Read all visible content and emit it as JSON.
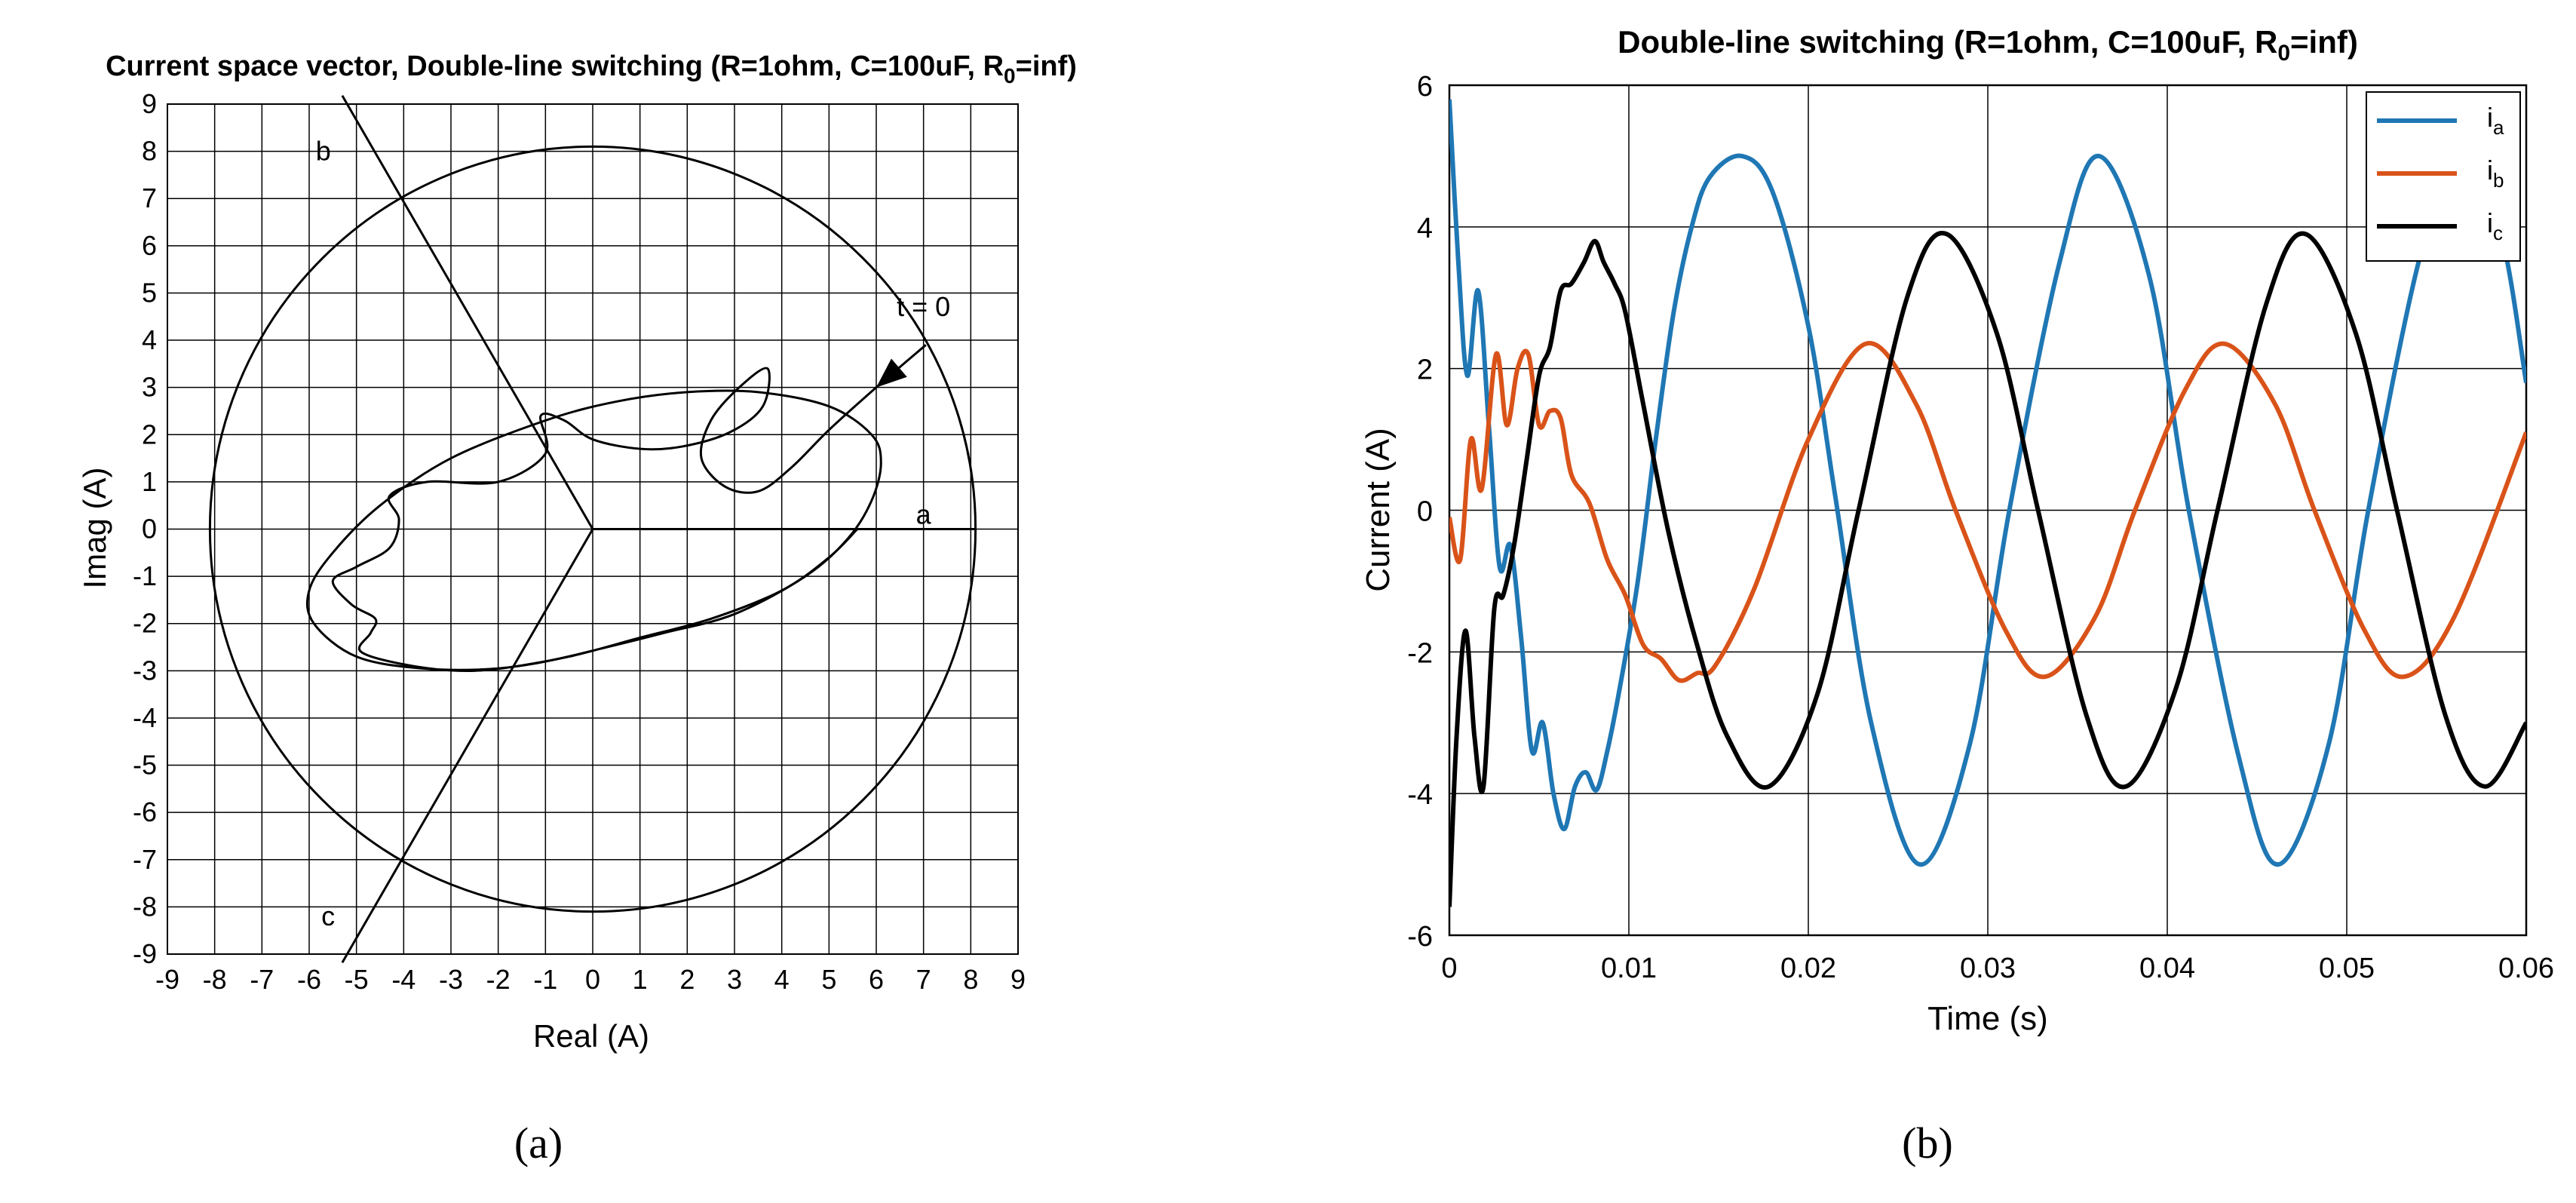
{
  "panels": {
    "a": {
      "label": "(a)"
    },
    "b": {
      "label": "(b)"
    }
  },
  "chart_data": [
    {
      "type": "line",
      "title": "Current space vector, Double-line switching (R=1ohm, C=100uF, R",
      "title_sub": "0",
      "title_end": "=inf)",
      "xlabel": "Real   (A)",
      "ylabel": "Imag   (A)",
      "xlim": [
        -9,
        9
      ],
      "ylim": [
        -9,
        9
      ],
      "xticks": [
        -9,
        -8,
        -7,
        -6,
        -5,
        -4,
        -3,
        -2,
        -1,
        0,
        1,
        2,
        3,
        4,
        5,
        6,
        7,
        8,
        9
      ],
      "yticks": [
        9,
        8,
        7,
        6,
        5,
        4,
        3,
        2,
        1,
        0,
        -1,
        -2,
        -3,
        -4,
        -5,
        -6,
        -7,
        -8,
        -9
      ],
      "grid": true,
      "circle_radius": 8.1,
      "axes_lines": {
        "a": [
          [
            0,
            0
          ],
          [
            8.1,
            0
          ]
        ],
        "b": [
          [
            0,
            0
          ],
          [
            -5.3,
            9.18
          ]
        ],
        "c": [
          [
            0,
            0
          ],
          [
            -5.3,
            -9.18
          ]
        ]
      },
      "annotations": [
        {
          "text": "a",
          "x": 7.0,
          "y": 0.3
        },
        {
          "text": "b",
          "x": -5.7,
          "y": 8.0
        },
        {
          "text": "c",
          "x": -5.6,
          "y": -8.2
        },
        {
          "text": "t = 0",
          "x": 7.0,
          "y": 4.7
        }
      ],
      "arrow": {
        "from": [
          7.05,
          3.9
        ],
        "to": [
          6.0,
          3.0
        ]
      },
      "trajectory": [
        [
          7.05,
          3.9
        ],
        [
          6.0,
          3.0
        ],
        [
          5.0,
          2.1
        ],
        [
          4.2,
          1.3
        ],
        [
          3.5,
          0.8
        ],
        [
          2.8,
          0.9
        ],
        [
          2.3,
          1.5
        ],
        [
          2.5,
          2.3
        ],
        [
          3.1,
          3.0
        ],
        [
          3.7,
          3.4
        ],
        [
          3.6,
          2.6
        ],
        [
          2.9,
          2.05
        ],
        [
          1.9,
          1.75
        ],
        [
          1.0,
          1.7
        ],
        [
          0.0,
          1.9
        ],
        [
          -0.6,
          2.3
        ],
        [
          -1.1,
          2.4
        ],
        [
          -1.0,
          1.6
        ],
        [
          -2.0,
          1.0
        ],
        [
          -3.5,
          1.0
        ],
        [
          -4.3,
          0.7
        ],
        [
          -4.1,
          0.2
        ],
        [
          -4.3,
          -0.4
        ],
        [
          -5.0,
          -0.8
        ],
        [
          -5.5,
          -1.1
        ],
        [
          -5.1,
          -1.6
        ],
        [
          -4.6,
          -1.9
        ],
        [
          -4.7,
          -2.2
        ],
        [
          -4.9,
          -2.6
        ],
        [
          -3.8,
          -2.9
        ],
        [
          -2.5,
          -3.0
        ],
        [
          -1.0,
          -2.8
        ],
        [
          0.3,
          -2.5
        ],
        [
          1.5,
          -2.2
        ],
        [
          3.0,
          -1.8
        ],
        [
          4.5,
          -1.0
        ],
        [
          5.4,
          -0.2
        ],
        [
          5.9,
          0.6
        ],
        [
          6.1,
          1.4
        ],
        [
          5.9,
          2.0
        ],
        [
          5.0,
          2.6
        ],
        [
          3.5,
          2.9
        ],
        [
          2.0,
          2.9
        ],
        [
          0.5,
          2.7
        ],
        [
          -1.0,
          2.3
        ],
        [
          -3.0,
          1.5
        ],
        [
          -4.5,
          0.5
        ],
        [
          -5.5,
          -0.5
        ],
        [
          -6.0,
          -1.3
        ],
        [
          -5.9,
          -2.0
        ],
        [
          -5.0,
          -2.7
        ],
        [
          -3.6,
          -2.95
        ],
        [
          -2.0,
          -2.95
        ],
        [
          -0.5,
          -2.7
        ],
        [
          1.0,
          -2.3
        ],
        [
          2.5,
          -1.9
        ],
        [
          4.0,
          -1.3
        ],
        [
          5.0,
          -0.6
        ],
        [
          5.6,
          0.0
        ]
      ]
    },
    {
      "type": "line",
      "title": "Double-line switching (R=1ohm, C=100uF, R",
      "title_sub": "0",
      "title_end": "=inf)",
      "xlabel": "Time   (s)",
      "ylabel": "Current   (A)",
      "xlim": [
        0,
        0.06
      ],
      "ylim": [
        -6,
        6
      ],
      "xticks": [
        0,
        0.01,
        0.02,
        0.03,
        0.04,
        0.05,
        0.06
      ],
      "xtick_labels": [
        "0",
        "0.01",
        "0.02",
        "0.03",
        "0.04",
        "0.05",
        "0.06"
      ],
      "yticks": [
        6,
        4,
        2,
        0,
        -2,
        -4,
        -6
      ],
      "grid": true,
      "legend_position": "top-right",
      "series": [
        {
          "name": "i",
          "name_sub": "a",
          "color": "#1f77b4",
          "points": [
            [
              0,
              5.8
            ],
            [
              0.0005,
              3.5
            ],
            [
              0.001,
              1.9
            ],
            [
              0.0016,
              3.1
            ],
            [
              0.0022,
              1.2
            ],
            [
              0.0028,
              -0.8
            ],
            [
              0.0034,
              -0.5
            ],
            [
              0.004,
              -1.8
            ],
            [
              0.0046,
              -3.4
            ],
            [
              0.0052,
              -3.0
            ],
            [
              0.0058,
              -4.0
            ],
            [
              0.0064,
              -4.5
            ],
            [
              0.007,
              -3.9
            ],
            [
              0.0076,
              -3.7
            ],
            [
              0.0082,
              -3.95
            ],
            [
              0.0088,
              -3.4
            ],
            [
              0.0095,
              -2.5
            ],
            [
              0.0105,
              -1.0
            ],
            [
              0.0115,
              1.0
            ],
            [
              0.0125,
              2.8
            ],
            [
              0.0135,
              4.0
            ],
            [
              0.0145,
              4.7
            ],
            [
              0.0163,
              5.0
            ],
            [
              0.018,
              4.5
            ],
            [
              0.02,
              2.6
            ],
            [
              0.0215,
              0.2
            ],
            [
              0.0235,
              -3.0
            ],
            [
              0.0262,
              -5.0
            ],
            [
              0.029,
              -3.3
            ],
            [
              0.0312,
              0.0
            ],
            [
              0.034,
              3.5
            ],
            [
              0.0362,
              5.0
            ],
            [
              0.039,
              3.3
            ],
            [
              0.0412,
              0.0
            ],
            [
              0.044,
              -3.5
            ],
            [
              0.0462,
              -5.0
            ],
            [
              0.049,
              -3.3
            ],
            [
              0.0512,
              0.0
            ],
            [
              0.054,
              3.5
            ],
            [
              0.0562,
              5.0
            ],
            [
              0.0585,
              4.0
            ],
            [
              0.06,
              1.8
            ]
          ]
        },
        {
          "name": "i",
          "name_sub": "b",
          "color": "#d95319",
          "points": [
            [
              0,
              -0.1
            ],
            [
              0.0006,
              -0.7
            ],
            [
              0.0012,
              1.0
            ],
            [
              0.0018,
              0.3
            ],
            [
              0.0026,
              2.2
            ],
            [
              0.0032,
              1.2
            ],
            [
              0.0038,
              2.0
            ],
            [
              0.0044,
              2.2
            ],
            [
              0.005,
              1.2
            ],
            [
              0.0056,
              1.4
            ],
            [
              0.0062,
              1.3
            ],
            [
              0.0068,
              0.5
            ],
            [
              0.0078,
              0.1
            ],
            [
              0.0088,
              -0.7
            ],
            [
              0.0098,
              -1.2
            ],
            [
              0.0108,
              -1.9
            ],
            [
              0.0118,
              -2.1
            ],
            [
              0.0128,
              -2.4
            ],
            [
              0.0138,
              -2.3
            ],
            [
              0.0148,
              -2.2
            ],
            [
              0.017,
              -1.1
            ],
            [
              0.02,
              1.0
            ],
            [
              0.0232,
              2.35
            ],
            [
              0.026,
              1.5
            ],
            [
              0.0282,
              0.0
            ],
            [
              0.031,
              -1.7
            ],
            [
              0.0332,
              -2.35
            ],
            [
              0.036,
              -1.5
            ],
            [
              0.0382,
              0.0
            ],
            [
              0.041,
              1.7
            ],
            [
              0.0432,
              2.35
            ],
            [
              0.046,
              1.5
            ],
            [
              0.0482,
              0.0
            ],
            [
              0.051,
              -1.7
            ],
            [
              0.0532,
              -2.35
            ],
            [
              0.056,
              -1.5
            ],
            [
              0.06,
              1.1
            ]
          ]
        },
        {
          "name": "i",
          "name_sub": "c",
          "color": "#000000",
          "points": [
            [
              0,
              -5.6
            ],
            [
              0.0004,
              -3.2
            ],
            [
              0.0009,
              -1.7
            ],
            [
              0.0014,
              -3.2
            ],
            [
              0.0019,
              -3.9
            ],
            [
              0.0025,
              -1.4
            ],
            [
              0.003,
              -1.2
            ],
            [
              0.0036,
              -0.5
            ],
            [
              0.0043,
              0.7
            ],
            [
              0.005,
              1.9
            ],
            [
              0.0056,
              2.3
            ],
            [
              0.0062,
              3.1
            ],
            [
              0.0068,
              3.2
            ],
            [
              0.0075,
              3.5
            ],
            [
              0.0081,
              3.8
            ],
            [
              0.0086,
              3.5
            ],
            [
              0.0092,
              3.2
            ],
            [
              0.0098,
              2.8
            ],
            [
              0.0108,
              1.5
            ],
            [
              0.0122,
              -0.3
            ],
            [
              0.0138,
              -1.9
            ],
            [
              0.0155,
              -3.2
            ],
            [
              0.0178,
              -3.9
            ],
            [
              0.0205,
              -2.6
            ],
            [
              0.0228,
              0.0
            ],
            [
              0.0255,
              3.0
            ],
            [
              0.0277,
              3.9
            ],
            [
              0.0305,
              2.5
            ],
            [
              0.0328,
              0.0
            ],
            [
              0.0355,
              -2.9
            ],
            [
              0.0377,
              -3.9
            ],
            [
              0.0405,
              -2.5
            ],
            [
              0.0428,
              0.0
            ],
            [
              0.0455,
              2.9
            ],
            [
              0.0477,
              3.9
            ],
            [
              0.0505,
              2.5
            ],
            [
              0.0528,
              0.0
            ],
            [
              0.0555,
              -2.9
            ],
            [
              0.0577,
              -3.9
            ],
            [
              0.06,
              -3.0
            ]
          ]
        }
      ]
    }
  ]
}
